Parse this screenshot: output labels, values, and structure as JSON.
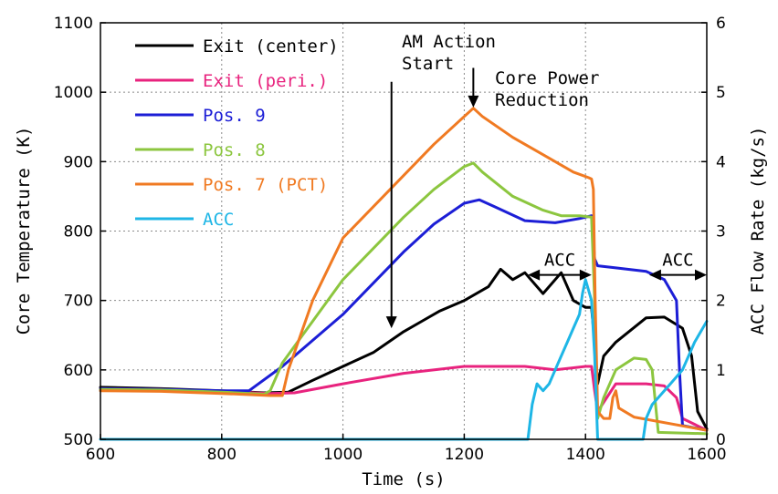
{
  "chart_data": {
    "type": "line",
    "xlabel": "Time (s)",
    "ylabel_left": "Core Temperature (K)",
    "ylabel_right": "ACC Flow Rate (kg/s)",
    "xlim": [
      600,
      1600
    ],
    "ylim_left": [
      500,
      1100
    ],
    "ylim_right": [
      0,
      6
    ],
    "x_ticks": [
      "600",
      "800",
      "1000",
      "1200",
      "1400",
      "1600"
    ],
    "y_ticks_left": [
      "500",
      "600",
      "700",
      "800",
      "900",
      "1000",
      "1100"
    ],
    "y_ticks_right": [
      "0",
      "1",
      "2",
      "3",
      "4",
      "5",
      "6"
    ],
    "grid": "dotted",
    "legend_position": "top-left",
    "series": [
      {
        "name": "Exit (center)",
        "color": "#000000",
        "axis": "left",
        "points": [
          [
            600,
            575
          ],
          [
            700,
            573
          ],
          [
            800,
            570
          ],
          [
            870,
            567
          ],
          [
            910,
            568
          ],
          [
            950,
            585
          ],
          [
            1000,
            605
          ],
          [
            1050,
            625
          ],
          [
            1100,
            655
          ],
          [
            1130,
            670
          ],
          [
            1160,
            685
          ],
          [
            1200,
            700
          ],
          [
            1240,
            720
          ],
          [
            1260,
            745
          ],
          [
            1280,
            730
          ],
          [
            1300,
            740
          ],
          [
            1330,
            710
          ],
          [
            1360,
            740
          ],
          [
            1380,
            700
          ],
          [
            1400,
            690
          ],
          [
            1410,
            690
          ],
          [
            1415,
            640
          ],
          [
            1420,
            580
          ],
          [
            1430,
            620
          ],
          [
            1450,
            640
          ],
          [
            1500,
            675
          ],
          [
            1530,
            676
          ],
          [
            1560,
            660
          ],
          [
            1575,
            620
          ],
          [
            1585,
            540
          ],
          [
            1600,
            515
          ]
        ]
      },
      {
        "name": "Exit (peri.)",
        "color": "#e8237e",
        "axis": "left",
        "points": [
          [
            600,
            573
          ],
          [
            700,
            572
          ],
          [
            800,
            569
          ],
          [
            880,
            566
          ],
          [
            920,
            567
          ],
          [
            1000,
            580
          ],
          [
            1100,
            595
          ],
          [
            1200,
            605
          ],
          [
            1250,
            605
          ],
          [
            1300,
            605
          ],
          [
            1350,
            600
          ],
          [
            1400,
            605
          ],
          [
            1410,
            605
          ],
          [
            1415,
            570
          ],
          [
            1420,
            540
          ],
          [
            1450,
            580
          ],
          [
            1500,
            580
          ],
          [
            1530,
            577
          ],
          [
            1550,
            560
          ],
          [
            1560,
            530
          ],
          [
            1600,
            513
          ]
        ]
      },
      {
        "name": "Pos. 9",
        "color": "#1c1ed6",
        "axis": "left",
        "points": [
          [
            600,
            573
          ],
          [
            700,
            572
          ],
          [
            800,
            570
          ],
          [
            845,
            570
          ],
          [
            900,
            605
          ],
          [
            1000,
            680
          ],
          [
            1100,
            770
          ],
          [
            1150,
            810
          ],
          [
            1200,
            840
          ],
          [
            1225,
            845
          ],
          [
            1250,
            835
          ],
          [
            1300,
            815
          ],
          [
            1350,
            812
          ],
          [
            1390,
            818
          ],
          [
            1410,
            822
          ],
          [
            1415,
            760
          ],
          [
            1420,
            750
          ],
          [
            1450,
            747
          ],
          [
            1500,
            742
          ],
          [
            1530,
            730
          ],
          [
            1550,
            700
          ],
          [
            1555,
            600
          ],
          [
            1560,
            520
          ],
          [
            1600,
            513
          ]
        ]
      },
      {
        "name": "Pos. 8",
        "color": "#8cc63f",
        "axis": "left",
        "points": [
          [
            600,
            572
          ],
          [
            700,
            571
          ],
          [
            800,
            568
          ],
          [
            870,
            565
          ],
          [
            880,
            570
          ],
          [
            900,
            610
          ],
          [
            1000,
            730
          ],
          [
            1100,
            820
          ],
          [
            1150,
            860
          ],
          [
            1200,
            893
          ],
          [
            1215,
            898
          ],
          [
            1230,
            885
          ],
          [
            1280,
            850
          ],
          [
            1330,
            830
          ],
          [
            1360,
            822
          ],
          [
            1390,
            822
          ],
          [
            1410,
            820
          ],
          [
            1415,
            700
          ],
          [
            1420,
            530
          ],
          [
            1430,
            560
          ],
          [
            1450,
            600
          ],
          [
            1480,
            617
          ],
          [
            1500,
            615
          ],
          [
            1510,
            600
          ],
          [
            1520,
            510
          ],
          [
            1600,
            508
          ]
        ]
      },
      {
        "name": "Pos. 7 (PCT)",
        "color": "#f07a22",
        "axis": "left",
        "points": [
          [
            600,
            570
          ],
          [
            700,
            569
          ],
          [
            800,
            566
          ],
          [
            880,
            563
          ],
          [
            900,
            563
          ],
          [
            910,
            600
          ],
          [
            950,
            700
          ],
          [
            1000,
            790
          ],
          [
            1100,
            880
          ],
          [
            1150,
            925
          ],
          [
            1200,
            965
          ],
          [
            1215,
            977
          ],
          [
            1230,
            965
          ],
          [
            1280,
            935
          ],
          [
            1330,
            910
          ],
          [
            1380,
            885
          ],
          [
            1405,
            877
          ],
          [
            1410,
            875
          ],
          [
            1413,
            860
          ],
          [
            1416,
            700
          ],
          [
            1420,
            540
          ],
          [
            1430,
            530
          ],
          [
            1440,
            530
          ],
          [
            1445,
            560
          ],
          [
            1450,
            570
          ],
          [
            1455,
            545
          ],
          [
            1480,
            532
          ],
          [
            1600,
            513
          ]
        ]
      },
      {
        "name": "ACC",
        "color": "#1eb6e6",
        "axis": "right",
        "points": [
          [
            600,
            0
          ],
          [
            1300,
            0
          ],
          [
            1305,
            0
          ],
          [
            1312,
            0.5
          ],
          [
            1320,
            0.8
          ],
          [
            1330,
            0.7
          ],
          [
            1340,
            0.8
          ],
          [
            1350,
            1.0
          ],
          [
            1360,
            1.2
          ],
          [
            1370,
            1.4
          ],
          [
            1380,
            1.6
          ],
          [
            1390,
            1.8
          ],
          [
            1395,
            2.1
          ],
          [
            1400,
            2.3
          ],
          [
            1410,
            2.0
          ],
          [
            1415,
            1.2
          ],
          [
            1420,
            0
          ],
          [
            1490,
            0
          ],
          [
            1495,
            0
          ],
          [
            1500,
            0.3
          ],
          [
            1510,
            0.5
          ],
          [
            1520,
            0.6
          ],
          [
            1540,
            0.8
          ],
          [
            1560,
            1.0
          ],
          [
            1580,
            1.4
          ],
          [
            1600,
            1.7
          ]
        ]
      }
    ],
    "annotations": [
      {
        "text_lines": [
          "AM Action",
          "Start"
        ],
        "arrow_x": 1080,
        "arrow_from": 1015,
        "arrow_to": 660
      },
      {
        "text_lines": [
          "Core Power",
          "Reduction"
        ],
        "arrow_x": 1215,
        "arrow_from": 1035,
        "arrow_to": 978
      },
      {
        "text": "ACC",
        "span": [
          1305,
          1410
        ],
        "y": 763
      },
      {
        "text": "ACC",
        "span": [
          1505,
          1600
        ],
        "y": 763
      }
    ]
  }
}
